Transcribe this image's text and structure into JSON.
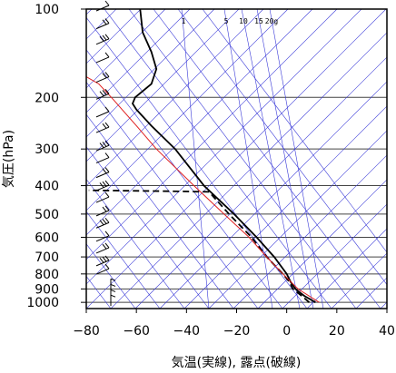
{
  "chart_data": {
    "type": "line",
    "title": "",
    "xlabel": "気温(実線), 露点(破線)",
    "ylabel": "気圧(hPa)",
    "xlim": [
      -80,
      40
    ],
    "ylim": [
      1050,
      100
    ],
    "y_scale": "log",
    "grid": true,
    "x_ticks": [
      -80,
      -60,
      -40,
      -20,
      0,
      20,
      40
    ],
    "x_tick_labels": [
      "−80",
      "−60",
      "−40",
      "−20",
      "0",
      "20",
      "40"
    ],
    "y_ticks": [
      100,
      200,
      300,
      400,
      500,
      600,
      700,
      800,
      900,
      1000
    ],
    "mixing_ratio_labels": [
      "1",
      "5",
      "10",
      "15",
      "20g"
    ],
    "mixing_ratio_values": [
      1,
      5,
      10,
      15,
      20
    ],
    "skew_lines_color": "#3a3ad8",
    "series": [
      {
        "role": "temperature",
        "color": "#000000",
        "dash": "solid",
        "points": [
          [
            1000,
            11.5
          ],
          [
            950,
            7
          ],
          [
            900,
            3.5
          ],
          [
            850,
            1.5
          ],
          [
            800,
            0
          ],
          [
            700,
            -5
          ],
          [
            600,
            -12
          ],
          [
            500,
            -21
          ],
          [
            400,
            -33
          ],
          [
            300,
            -44.5
          ],
          [
            250,
            -54
          ],
          [
            220,
            -60
          ],
          [
            210,
            -61.5
          ],
          [
            200,
            -60.5
          ],
          [
            180,
            -54
          ],
          [
            160,
            -52
          ],
          [
            140,
            -54
          ],
          [
            120,
            -57.5
          ],
          [
            100,
            -58.5
          ]
        ]
      },
      {
        "role": "dewpoint",
        "color": "#000000",
        "dash": "dashed",
        "points": [
          [
            1000,
            9
          ],
          [
            950,
            6
          ],
          [
            900,
            2.5
          ],
          [
            850,
            1
          ],
          [
            800,
            -1.5
          ],
          [
            700,
            -8
          ],
          [
            600,
            -14
          ],
          [
            500,
            -23
          ],
          [
            420,
            -31
          ],
          [
            418,
            -46
          ],
          [
            415,
            -79
          ]
        ]
      },
      {
        "role": "parcel",
        "color": "#e02020",
        "dash": "solid",
        "points": [
          [
            1000,
            13
          ],
          [
            900,
            4.5
          ],
          [
            800,
            -1.5
          ],
          [
            700,
            -8
          ],
          [
            600,
            -15
          ],
          [
            500,
            -25
          ],
          [
            400,
            -37
          ],
          [
            300,
            -52
          ],
          [
            250,
            -60
          ],
          [
            200,
            -70
          ],
          [
            180,
            -75
          ],
          [
            170,
            -80
          ]
        ]
      }
    ],
    "wind_barb_pressures": [
      100,
      115,
      130,
      150,
      175,
      200,
      230,
      260,
      300,
      330,
      370,
      410,
      450,
      500,
      550,
      610,
      670,
      740,
      790,
      880,
      920,
      960,
      1000
    ],
    "wind_barb_count": 23
  }
}
